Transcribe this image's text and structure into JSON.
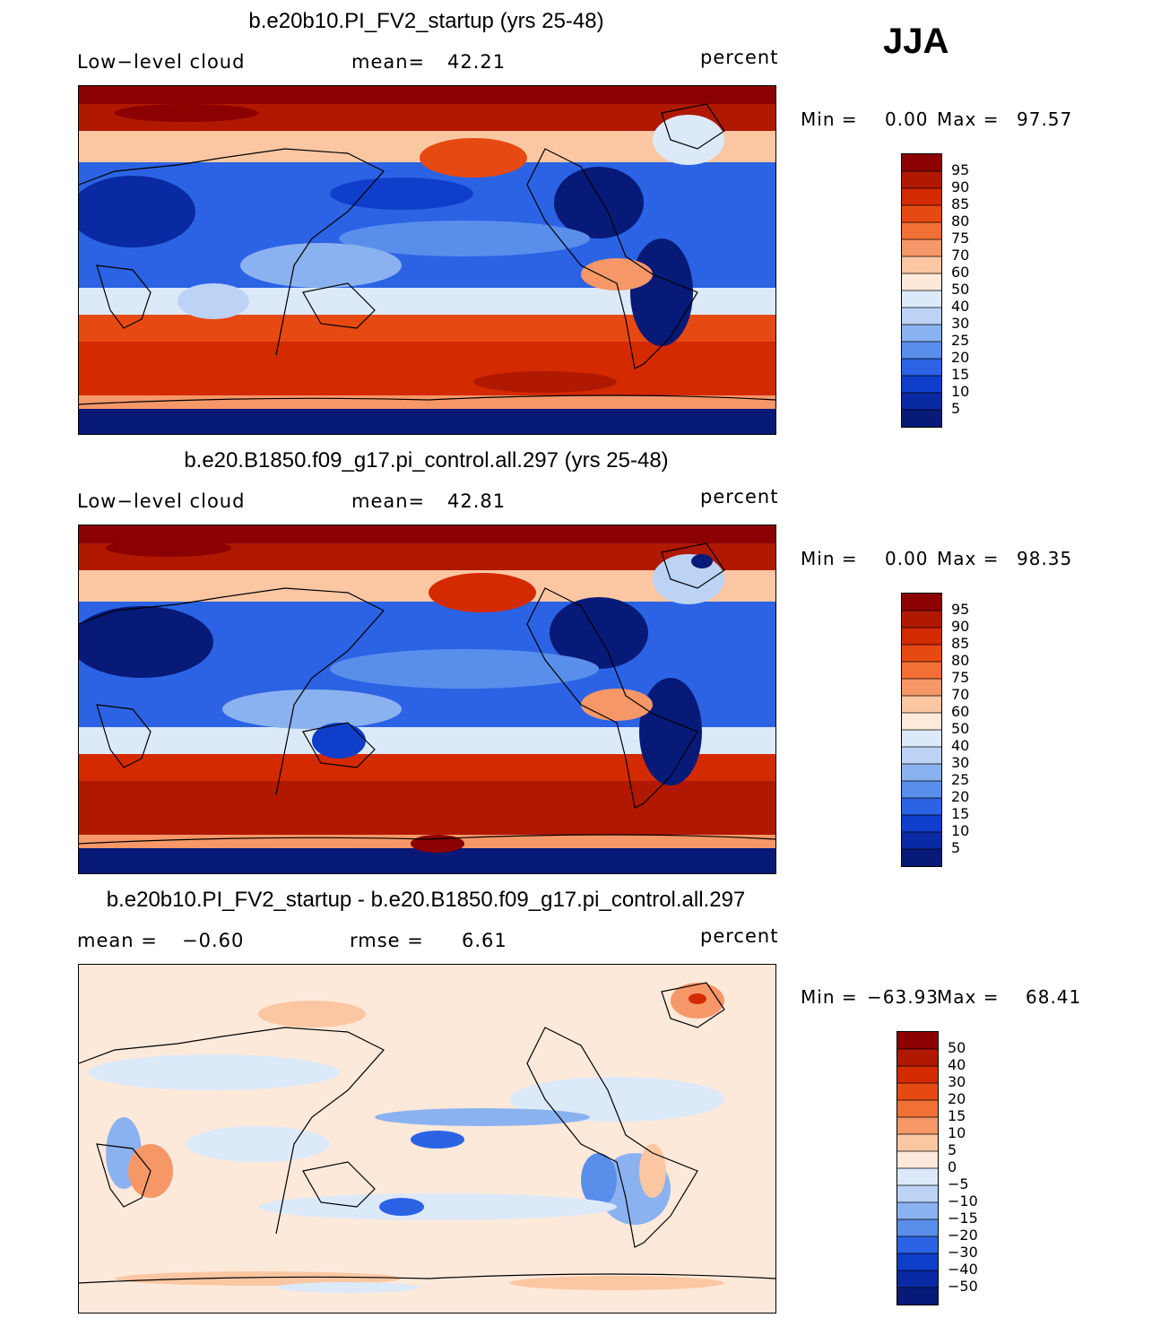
{
  "season": "JJA",
  "units": "percent",
  "panels": [
    {
      "title": "b.e20b10.PI_FV2_startup (yrs 25-48)",
      "left_label": "Low−level cloud",
      "stat_label": "mean=",
      "stat_value": "42.21",
      "stat2_label": "",
      "stat2_value": "",
      "min_label": "Min =",
      "min_value": "0.00",
      "max_label": "Max =",
      "max_value": "97.57",
      "scale": "abs",
      "colorbar_levels": [
        "95",
        "90",
        "85",
        "80",
        "75",
        "70",
        "60",
        "50",
        "40",
        "30",
        "25",
        "20",
        "15",
        "10",
        "5"
      ]
    },
    {
      "title": "b.e20.B1850.f09_g17.pi_control.all.297 (yrs 25-48)",
      "left_label": "Low−level cloud",
      "stat_label": "mean=",
      "stat_value": "42.81",
      "stat2_label": "",
      "stat2_value": "",
      "min_label": "Min =",
      "min_value": "0.00",
      "max_label": "Max =",
      "max_value": "98.35",
      "scale": "abs",
      "colorbar_levels": [
        "95",
        "90",
        "85",
        "80",
        "75",
        "70",
        "60",
        "50",
        "40",
        "30",
        "25",
        "20",
        "15",
        "10",
        "5"
      ]
    },
    {
      "title": "b.e20b10.PI_FV2_startup - b.e20.B1850.f09_g17.pi_control.all.297",
      "left_label": "mean =",
      "stat_label": "",
      "stat_value": "−0.60",
      "stat2_label": "rmse =",
      "stat2_value": "6.61",
      "min_label": "Min =",
      "min_value": "−63.93",
      "max_label": "Max =",
      "max_value": "68.41",
      "scale": "diff",
      "colorbar_levels": [
        "50",
        "40",
        "30",
        "20",
        "15",
        "10",
        "5",
        "0",
        "−5",
        "−10",
        "−15",
        "−20",
        "−30",
        "−40",
        "−50"
      ]
    }
  ],
  "colors": {
    "abs": [
      "#8b0000",
      "#b01800",
      "#d42a00",
      "#e64a12",
      "#f27035",
      "#f69768",
      "#fbc7a3",
      "#fde9da",
      "#dce9f9",
      "#bcd3f5",
      "#8bb2f0",
      "#5a8eeb",
      "#2b63e4",
      "#0f3ecb",
      "#0a2aa3",
      "#071a78"
    ],
    "diff": [
      "#8b0000",
      "#b01800",
      "#d42a00",
      "#e64a12",
      "#f27035",
      "#f69768",
      "#fbc7a3",
      "#fde9da",
      "#dce9f9",
      "#bcd3f5",
      "#8bb2f0",
      "#5a8eeb",
      "#2b63e4",
      "#0f3ecb",
      "#0a2aa3",
      "#071a78"
    ]
  }
}
